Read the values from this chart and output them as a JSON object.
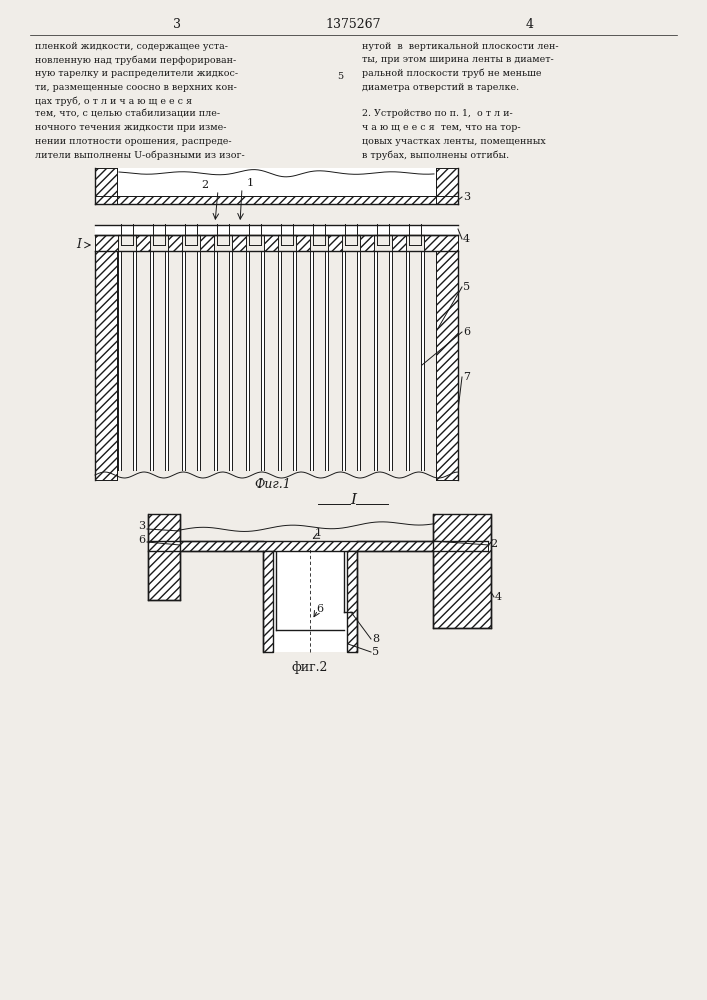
{
  "page_number_left": "3",
  "page_number_center": "1375267",
  "page_number_right": "4",
  "text_left_lines": [
    "пленкой жидкости, содержащее уста-",
    "новленную над трубами перфорирован-",
    "ную тарелку и распределители жидкос-",
    "ти, размещенные соосно в верхних кон-",
    "цах труб, о т л и ч а ю щ е е с я",
    "тем, что, с целью стабилизации пле-",
    "ночного течения жидкости при изме-",
    "нении плотности орошения, распреде-",
    "лители выполнены U-образными из изог-"
  ],
  "text_right_lines": [
    "нутой  в  вертикальной плоскости лен-",
    "ты, при этом ширина ленты в диамет-",
    "ральной плоскости труб не меньше",
    "диаметра отверстий в тарелке.",
    "",
    "2. Устройство по п. 1,  о т л и-",
    "ч а ю щ е е с я  тем, что на тор-",
    "цовых участках ленты, помещенных",
    "в трубах, выполнены отгибы."
  ],
  "fig1_caption": "Фиг.1",
  "fig2_caption": "фиг.2",
  "section_label": "I",
  "bg_color": "#f0ede8",
  "line_color": "#1a1a1a",
  "text_color": "#1a1a1a"
}
